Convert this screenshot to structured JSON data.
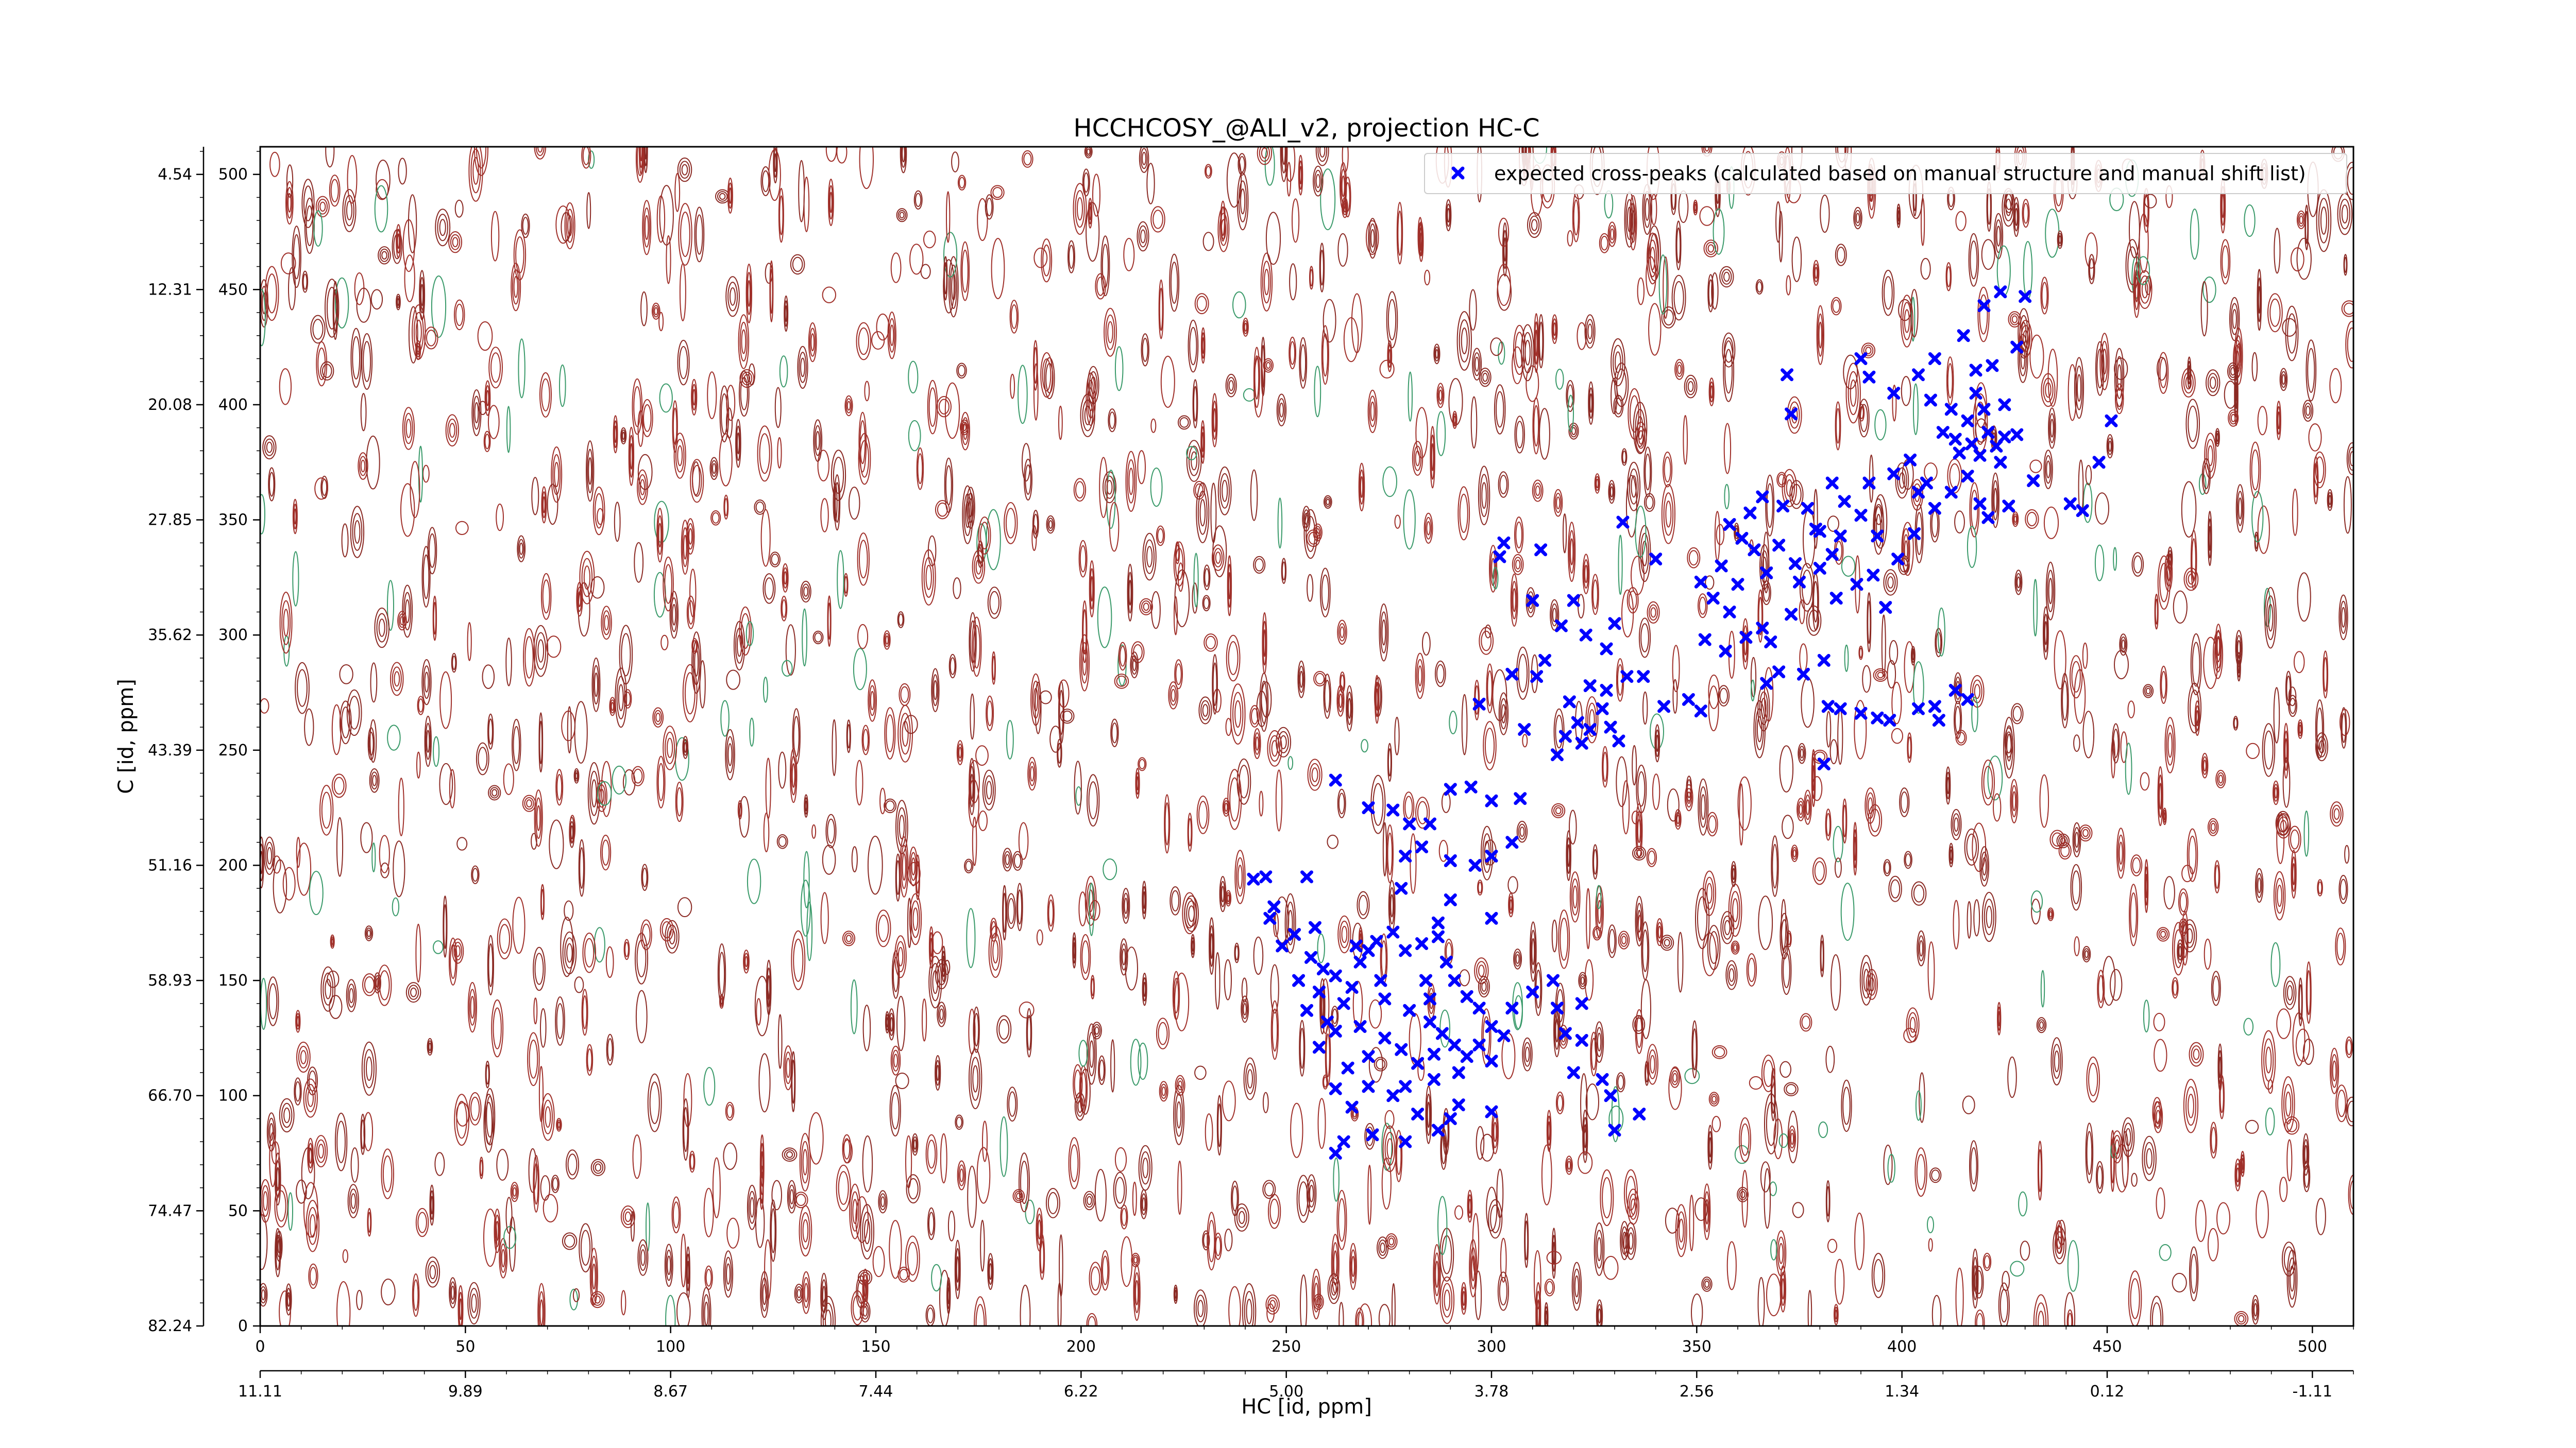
{
  "chart_data": {
    "type": "scatter",
    "title": "HCCHCOSY_@ALI_v2, projection HC-C",
    "xlabel": "HC [id, ppm]",
    "ylabel": "C [id, ppm]",
    "xlim": [
      0,
      510
    ],
    "ylim": [
      0,
      512
    ],
    "x_ticks": [
      0,
      50,
      100,
      150,
      200,
      250,
      300,
      350,
      400,
      450,
      500
    ],
    "y_ticks": [
      0,
      50,
      100,
      150,
      200,
      250,
      300,
      350,
      400,
      450,
      500
    ],
    "x_ppm_ticks": [
      {
        "pos": 0,
        "label": "11.11"
      },
      {
        "pos": 50,
        "label": "9.89"
      },
      {
        "pos": 100,
        "label": "8.67"
      },
      {
        "pos": 150,
        "label": "7.44"
      },
      {
        "pos": 200,
        "label": "6.22"
      },
      {
        "pos": 250,
        "label": "5.00"
      },
      {
        "pos": 300,
        "label": "3.78"
      },
      {
        "pos": 350,
        "label": "2.56"
      },
      {
        "pos": 400,
        "label": "1.34"
      },
      {
        "pos": 450,
        "label": "0.12"
      },
      {
        "pos": 500,
        "label": "-1.11"
      }
    ],
    "y_ppm_ticks": [
      {
        "pos": 0,
        "label": "82.24"
      },
      {
        "pos": 50,
        "label": "74.47"
      },
      {
        "pos": 100,
        "label": "66.70"
      },
      {
        "pos": 150,
        "label": "58.93"
      },
      {
        "pos": 200,
        "label": "51.16"
      },
      {
        "pos": 250,
        "label": "43.39"
      },
      {
        "pos": 300,
        "label": "35.62"
      },
      {
        "pos": 350,
        "label": "27.85"
      },
      {
        "pos": 400,
        "label": "20.08"
      },
      {
        "pos": 450,
        "label": "12.31"
      },
      {
        "pos": 500,
        "label": "4.54"
      }
    ],
    "legend": {
      "position": "top-right"
    },
    "series": [
      {
        "name": "expected cross-peaks (calculated based on manual structure and manual shift list)",
        "color": "#0000ff",
        "marker": "x-filled",
        "points": [
          [
            424,
            449
          ],
          [
            430,
            447
          ],
          [
            415,
            430
          ],
          [
            420,
            443
          ],
          [
            428,
            425
          ],
          [
            418,
            415
          ],
          [
            408,
            420
          ],
          [
            422,
            417
          ],
          [
            404,
            413
          ],
          [
            418,
            405
          ],
          [
            425,
            400
          ],
          [
            420,
            398
          ],
          [
            416,
            393
          ],
          [
            421,
            388
          ],
          [
            425,
            386
          ],
          [
            413,
            385
          ],
          [
            417,
            383
          ],
          [
            423,
            382
          ],
          [
            428,
            387
          ],
          [
            419,
            378
          ],
          [
            424,
            375
          ],
          [
            414,
            379
          ],
          [
            410,
            388
          ],
          [
            412,
            398
          ],
          [
            407,
            402
          ],
          [
            398,
            405
          ],
          [
            390,
            420
          ],
          [
            392,
            412
          ],
          [
            372,
            413
          ],
          [
            373,
            396
          ],
          [
            402,
            376
          ],
          [
            398,
            370
          ],
          [
            404,
            362
          ],
          [
            392,
            366
          ],
          [
            406,
            366
          ],
          [
            383,
            366
          ],
          [
            386,
            358
          ],
          [
            390,
            352
          ],
          [
            394,
            343
          ],
          [
            385,
            343
          ],
          [
            380,
            345
          ],
          [
            377,
            355
          ],
          [
            371,
            356
          ],
          [
            366,
            360
          ],
          [
            363,
            353
          ],
          [
            358,
            348
          ],
          [
            361,
            342
          ],
          [
            356,
            330
          ],
          [
            364,
            337
          ],
          [
            370,
            339
          ],
          [
            374,
            331
          ],
          [
            367,
            327
          ],
          [
            360,
            322
          ],
          [
            354,
            316
          ],
          [
            351,
            323
          ],
          [
            358,
            310
          ],
          [
            362,
            299
          ],
          [
            368,
            297
          ],
          [
            357,
            293
          ],
          [
            352,
            298
          ],
          [
            366,
            303
          ],
          [
            373,
            309
          ],
          [
            375,
            323
          ],
          [
            380,
            329
          ],
          [
            384,
            316
          ],
          [
            389,
            322
          ],
          [
            393,
            326
          ],
          [
            399,
            333
          ],
          [
            403,
            344
          ],
          [
            408,
            355
          ],
          [
            412,
            362
          ],
          [
            416,
            369
          ],
          [
            419,
            357
          ],
          [
            421,
            351
          ],
          [
            426,
            356
          ],
          [
            432,
            367
          ],
          [
            441,
            357
          ],
          [
            444,
            354
          ],
          [
            448,
            375
          ],
          [
            451,
            393
          ],
          [
            383,
            335
          ],
          [
            379,
            346
          ],
          [
            396,
            312
          ],
          [
            376,
            283
          ],
          [
            367,
            279
          ],
          [
            370,
            284
          ],
          [
            382,
            269
          ],
          [
            381,
            289
          ],
          [
            390,
            266
          ],
          [
            394,
            264
          ],
          [
            397,
            263
          ],
          [
            404,
            268
          ],
          [
            408,
            269
          ],
          [
            416,
            272
          ],
          [
            413,
            276
          ],
          [
            409,
            263
          ],
          [
            385,
            268
          ],
          [
            381,
            244
          ],
          [
            348,
            272
          ],
          [
            351,
            267
          ],
          [
            342,
            269
          ],
          [
            337,
            282
          ],
          [
            328,
            294
          ],
          [
            330,
            305
          ],
          [
            333,
            282
          ],
          [
            328,
            276
          ],
          [
            324,
            278
          ],
          [
            327,
            268
          ],
          [
            324,
            259
          ],
          [
            318,
            256
          ],
          [
            331,
            254
          ],
          [
            329,
            260
          ],
          [
            321,
            262
          ],
          [
            316,
            248
          ],
          [
            308,
            259
          ],
          [
            297,
            270
          ],
          [
            305,
            283
          ],
          [
            311,
            282
          ],
          [
            313,
            289
          ],
          [
            310,
            315
          ],
          [
            317,
            304
          ],
          [
            302,
            334
          ],
          [
            303,
            340
          ],
          [
            312,
            337
          ],
          [
            320,
            315
          ],
          [
            332,
            349
          ],
          [
            340,
            333
          ],
          [
            323,
            300
          ],
          [
            319,
            271
          ],
          [
            322,
            253
          ],
          [
            290,
            233
          ],
          [
            295,
            234
          ],
          [
            300,
            228
          ],
          [
            307,
            229
          ],
          [
            285,
            218
          ],
          [
            280,
            218
          ],
          [
            276,
            224
          ],
          [
            283,
            208
          ],
          [
            290,
            202
          ],
          [
            296,
            200
          ],
          [
            300,
            204
          ],
          [
            305,
            210
          ],
          [
            290,
            185
          ],
          [
            278,
            190
          ],
          [
            270,
            225
          ],
          [
            262,
            237
          ],
          [
            255,
            195
          ],
          [
            245,
            195
          ],
          [
            242,
            194
          ],
          [
            247,
            182
          ],
          [
            246,
            177
          ],
          [
            249,
            165
          ],
          [
            252,
            170
          ],
          [
            256,
            160
          ],
          [
            259,
            155
          ],
          [
            262,
            152
          ],
          [
            266,
            147
          ],
          [
            268,
            158
          ],
          [
            270,
            163
          ],
          [
            272,
            167
          ],
          [
            276,
            171
          ],
          [
            279,
            163
          ],
          [
            283,
            166
          ],
          [
            287,
            169
          ],
          [
            289,
            158
          ],
          [
            291,
            150
          ],
          [
            294,
            143
          ],
          [
            297,
            138
          ],
          [
            300,
            130
          ],
          [
            297,
            122
          ],
          [
            294,
            117
          ],
          [
            291,
            122
          ],
          [
            286,
            118
          ],
          [
            282,
            114
          ],
          [
            278,
            120
          ],
          [
            274,
            125
          ],
          [
            268,
            130
          ],
          [
            264,
            140
          ],
          [
            258,
            145
          ],
          [
            255,
            137
          ],
          [
            253,
            150
          ],
          [
            260,
            132
          ],
          [
            258,
            121
          ],
          [
            265,
            112
          ],
          [
            270,
            104
          ],
          [
            279,
            104
          ],
          [
            286,
            107
          ],
          [
            292,
            96
          ],
          [
            290,
            90
          ],
          [
            282,
            92
          ],
          [
            276,
            100
          ],
          [
            266,
            95
          ],
          [
            262,
            103
          ],
          [
            271,
            83
          ],
          [
            279,
            80
          ],
          [
            287,
            85
          ],
          [
            292,
            110
          ],
          [
            300,
            115
          ],
          [
            303,
            126
          ],
          [
            305,
            138
          ],
          [
            310,
            145
          ],
          [
            316,
            138
          ],
          [
            318,
            127
          ],
          [
            322,
            124
          ],
          [
            322,
            140
          ],
          [
            315,
            150
          ],
          [
            320,
            110
          ],
          [
            327,
            107
          ],
          [
            329,
            100
          ],
          [
            336,
            92
          ],
          [
            330,
            85
          ],
          [
            262,
            128
          ],
          [
            270,
            117
          ],
          [
            280,
            137
          ],
          [
            285,
            142
          ],
          [
            273,
            150
          ],
          [
            267,
            165
          ],
          [
            274,
            142
          ],
          [
            285,
            132
          ],
          [
            288,
            127
          ],
          [
            284,
            150
          ],
          [
            287,
            175
          ],
          [
            300,
            177
          ],
          [
            257,
            173
          ],
          [
            279,
            204
          ],
          [
            264,
            80
          ],
          [
            262,
            75
          ],
          [
            300,
            93
          ]
        ]
      }
    ]
  }
}
